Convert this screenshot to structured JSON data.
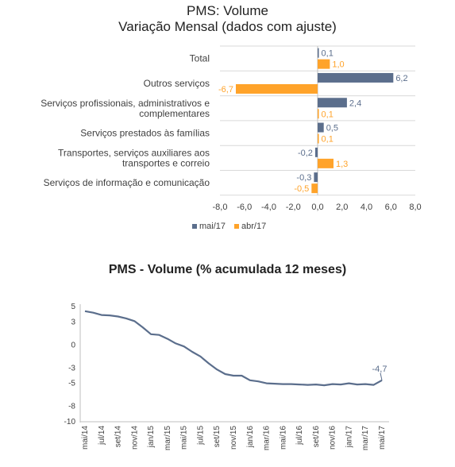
{
  "chart_data": [
    {
      "type": "bar",
      "title": "PMS: Volume",
      "subtitle": "Variação Mensal (dados com ajuste)",
      "orientation": "horizontal",
      "categories": [
        [
          "Total"
        ],
        [
          "Outros serviços"
        ],
        [
          "Serviços profissionais, administrativos e",
          "complementares"
        ],
        [
          "Serviços prestados às famílias"
        ],
        [
          "Transportes, serviços auxiliares aos",
          "transportes e correio"
        ],
        [
          "Serviços de informação e comunicação"
        ]
      ],
      "series": [
        {
          "name": "mai/17",
          "color": "#5b6e8c",
          "values": [
            0.1,
            6.2,
            2.4,
            0.5,
            -0.2,
            -0.3
          ],
          "labels": [
            "0,1",
            "6,2",
            "2,4",
            "0,5",
            "-0,2",
            "-0,3"
          ]
        },
        {
          "name": "abr/17",
          "color": "#ffa32a",
          "values": [
            1.0,
            -6.7,
            0.1,
            0.1,
            1.3,
            -0.5
          ],
          "labels": [
            "1,0",
            "-6,7",
            "0,1",
            "0,1",
            "1,3",
            "-0,5"
          ]
        }
      ],
      "xlim": [
        -8,
        8
      ],
      "xticks": [
        -8,
        -6,
        -4,
        -2,
        0,
        2,
        4,
        6,
        8
      ],
      "xtick_labels": [
        "-8,0",
        "-6,0",
        "-4,0",
        "-2,0",
        "0,0",
        "2,0",
        "4,0",
        "6,0",
        "8,0"
      ],
      "grid": true,
      "legend_position": "bottom"
    },
    {
      "type": "line",
      "title": "PMS - Volume (% acumulada 12 meses)",
      "series": [
        {
          "color": "#5b6e8c",
          "values": [
            4.3,
            4.1,
            3.8,
            3.75,
            3.6,
            3.35,
            3.0,
            2.2,
            1.3,
            1.2,
            0.7,
            0.1,
            -0.3,
            -1.0,
            -1.6,
            -2.5,
            -3.3,
            -3.9,
            -4.1,
            -4.1,
            -4.7,
            -4.85,
            -5.1,
            -5.15,
            -5.2,
            -5.2,
            -5.25,
            -5.3,
            -5.25,
            -5.35,
            -5.2,
            -5.25,
            -5.1,
            -5.25,
            -5.2,
            -5.3,
            -4.7
          ]
        }
      ],
      "end_label": "-4,7",
      "ylim": [
        -10,
        5
      ],
      "yticks": [
        5,
        3,
        0,
        -3,
        -5,
        -8,
        -10
      ],
      "xtick_labels": [
        "mai/14",
        "jul/14",
        "set/14",
        "nov/14",
        "jan/15",
        "mar/15",
        "mai/15",
        "jul/15",
        "set/15",
        "nov/15",
        "jan/16",
        "mar/16",
        "mai/16",
        "jul/16",
        "set/16",
        "nov/16",
        "jan/17",
        "mar/17",
        "mai/17"
      ],
      "grid": false
    }
  ]
}
